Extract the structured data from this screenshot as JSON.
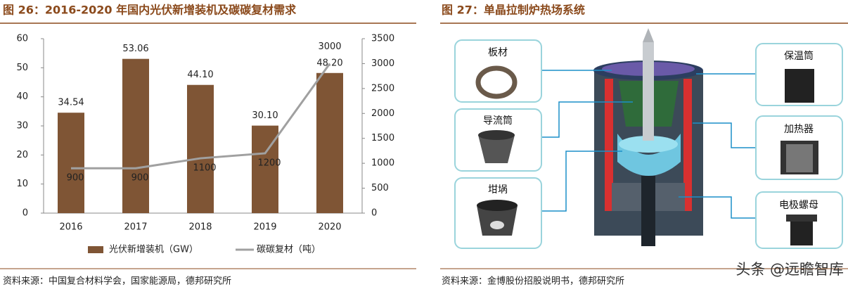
{
  "chart_data": {
    "type": "bar",
    "title": "图 26：2016-2020 年国内光伏新增装机及碳碳复材需求",
    "categories": [
      "2016",
      "2017",
      "2018",
      "2019",
      "2020"
    ],
    "series": [
      {
        "name": "光伏新增装机（GW）",
        "color": "#7f5535",
        "values": [
          34.54,
          53.06,
          44.1,
          30.1,
          48.2
        ],
        "value_labels": [
          "34.54",
          "53.06",
          "44.10",
          "30.10",
          "48.20"
        ]
      },
      {
        "name": "碳碳复材（吨）",
        "color": "#a0a0a0",
        "type": "line",
        "axis": "y2",
        "values": [
          900,
          900,
          1100,
          1200,
          3000
        ]
      }
    ],
    "ylim": [
      0,
      60
    ],
    "yticks": [
      0,
      10,
      20,
      30,
      40,
      50,
      60
    ],
    "y2lim": [
      0,
      3500
    ],
    "y2ticks": [
      0,
      500,
      1000,
      1500,
      2000,
      2500,
      3000,
      3500
    ],
    "legend": "bottom",
    "source": "资料来源：中国复合材料学会，国家能源局，德邦研究所"
  },
  "figure": {
    "title": "图 27：单晶拉制炉热场系统",
    "parts": [
      "板材",
      "导流筒",
      "坩埚",
      "保温筒",
      "加热器",
      "电极螺母"
    ],
    "source": "资料来源：金博股份招股说明书，德邦研究所",
    "watermark": "头条 @远瞻智库"
  }
}
